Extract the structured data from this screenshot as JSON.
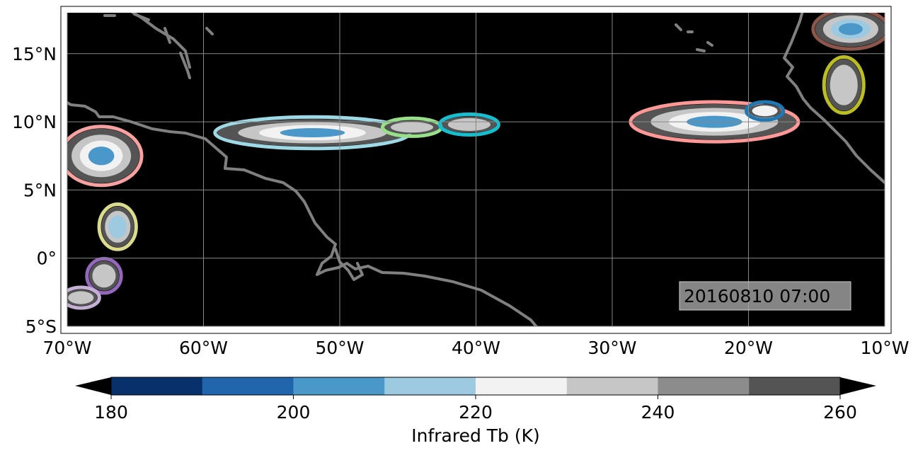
{
  "map": {
    "projection": "PlateCarree",
    "extent": {
      "lon_min": -70,
      "lon_max": -10,
      "lat_min": -5,
      "lat_max": 18
    },
    "background": "#000000",
    "coastline_color": "#808080",
    "gridline_color": "#888888",
    "timestamp": "20160810 07:00",
    "x_ticks": [
      {
        "value": -70,
        "label": "70°W"
      },
      {
        "value": -60,
        "label": "60°W"
      },
      {
        "value": -50,
        "label": "50°W"
      },
      {
        "value": -40,
        "label": "40°W"
      },
      {
        "value": -30,
        "label": "30°W"
      },
      {
        "value": -20,
        "label": "20°W"
      },
      {
        "value": -10,
        "label": "10°W"
      }
    ],
    "y_ticks": [
      {
        "value": 15,
        "label": "15°N"
      },
      {
        "value": 10,
        "label": "10°N"
      },
      {
        "value": 5,
        "label": "5°N"
      },
      {
        "value": 0,
        "label": "0°"
      },
      {
        "value": -5,
        "label": "5°S"
      }
    ]
  },
  "colorbar": {
    "label": "Infrared Tb (K)",
    "min": 180,
    "max": 260,
    "extend": "both",
    "ticks": [
      {
        "value": 180,
        "label": "180"
      },
      {
        "value": 200,
        "label": "200"
      },
      {
        "value": 220,
        "label": "220"
      },
      {
        "value": 240,
        "label": "240"
      },
      {
        "value": 260,
        "label": "260"
      }
    ],
    "colors": [
      "#08306b",
      "#2166ac",
      "#4a98c9",
      "#9ecae1",
      "#f2f2f2",
      "#c6c6c6",
      "#8c8c8c",
      "#545454"
    ],
    "under_color": "#000000",
    "over_color": "#000000"
  },
  "cloud_systems": [
    {
      "id": "large-west-system",
      "lon": -67.5,
      "lat": 7.5,
      "rx": 2.8,
      "ry": 2.0,
      "outline": "#f7a1a1",
      "levels": [
        260,
        240,
        225,
        205
      ]
    },
    {
      "id": "west-itcz-band",
      "lon": -52.0,
      "lat": 9.2,
      "rx": 7.0,
      "ry": 1.0,
      "outline": "#9edae5",
      "levels": [
        260,
        240,
        225,
        210
      ]
    },
    {
      "id": "mid-cluster-a",
      "lon": -44.7,
      "lat": 9.6,
      "rx": 2.0,
      "ry": 0.5,
      "outline": "#98df8a",
      "levels": [
        260,
        240
      ]
    },
    {
      "id": "mid-cluster-b",
      "lon": -40.5,
      "lat": 9.8,
      "rx": 2.0,
      "ry": 0.6,
      "outline": "#17becf",
      "levels": [
        260,
        240
      ]
    },
    {
      "id": "east-itcz-band",
      "lon": -22.5,
      "lat": 10.0,
      "rx": 6.0,
      "ry": 1.3,
      "outline": "#ff9896",
      "levels": [
        260,
        240,
        225,
        210
      ]
    },
    {
      "id": "east-cluster-blue",
      "lon": -18.8,
      "lat": 10.8,
      "rx": 1.2,
      "ry": 0.5,
      "outline": "#1f77b4",
      "levels": [
        260,
        230
      ]
    },
    {
      "id": "africa-north",
      "lon": -12.5,
      "lat": 16.8,
      "rx": 2.6,
      "ry": 1.3,
      "outline": "#8c564b",
      "levels": [
        260,
        240,
        220,
        205
      ]
    },
    {
      "id": "africa-olive",
      "lon": -13.0,
      "lat": 12.7,
      "rx": 1.3,
      "ry": 1.9,
      "outline": "#bcbd22",
      "levels": [
        260,
        240
      ]
    },
    {
      "id": "south-yellow",
      "lon": -66.3,
      "lat": 2.3,
      "rx": 1.2,
      "ry": 1.5,
      "outline": "#dbdb8d",
      "levels": [
        260,
        240,
        220
      ]
    },
    {
      "id": "south-purple",
      "lon": -67.3,
      "lat": -1.3,
      "rx": 1.1,
      "ry": 1.1,
      "outline": "#9467bd",
      "levels": [
        260,
        240
      ]
    },
    {
      "id": "south-lilac",
      "lon": -69.0,
      "lat": -2.9,
      "rx": 1.2,
      "ry": 0.6,
      "outline": "#c5b0d5",
      "levels": [
        260,
        240
      ]
    }
  ]
}
